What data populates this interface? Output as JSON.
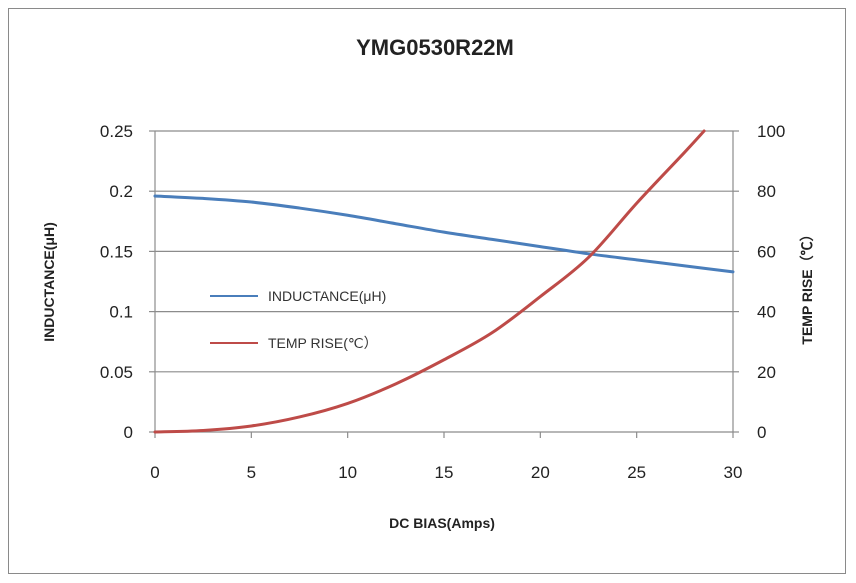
{
  "chart_data": {
    "type": "line",
    "title": "YMG0530R22M",
    "xlabel": "DC BIAS(Amps)",
    "ylabel": "INDUCTANCE(μH)",
    "y2label": "TEMP RISE（℃）",
    "xlim": [
      0,
      30
    ],
    "ylim": [
      0,
      0.25
    ],
    "y2lim": [
      0,
      100
    ],
    "x_ticks": [
      "0",
      "5",
      "10",
      "15",
      "20",
      "25",
      "30"
    ],
    "y_ticks": [
      "0",
      "0.05",
      "0.1",
      "0.15",
      "0.2",
      "0.25"
    ],
    "y2_ticks": [
      "0",
      "20",
      "40",
      "60",
      "80",
      "100"
    ],
    "grid": "horizontal",
    "legend": "inside-left",
    "series": [
      {
        "name": "INDUCTANCE(μH)",
        "axis": "left",
        "color": "#4a7ebb",
        "x": [
          0,
          2.5,
          5,
          7.5,
          10,
          12.5,
          15,
          17.5,
          20,
          22.5,
          25,
          27.5,
          30
        ],
        "y": [
          0.196,
          0.194,
          0.191,
          0.186,
          0.18,
          0.173,
          0.166,
          0.16,
          0.154,
          0.148,
          0.143,
          0.138,
          0.133
        ]
      },
      {
        "name": "TEMP RISE(℃）",
        "axis": "right",
        "color": "#be4b48",
        "x": [
          0,
          2.5,
          5,
          7.5,
          10,
          12.5,
          15,
          17.5,
          20,
          22.5,
          25,
          27.5,
          28.5
        ],
        "y": [
          0,
          0.5,
          2,
          5,
          9.5,
          16,
          24,
          33,
          45,
          58,
          76,
          93,
          100
        ]
      }
    ]
  }
}
